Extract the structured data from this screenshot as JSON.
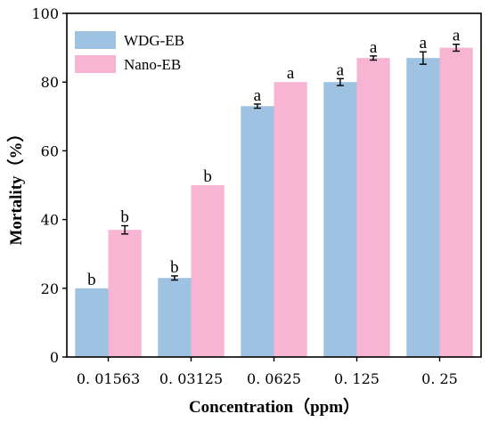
{
  "chart_data": {
    "type": "bar",
    "title": "",
    "xlabel": "Concentration（ppm）",
    "ylabel": "Mortality（%）",
    "ylim": [
      0,
      100
    ],
    "yticks": [
      0,
      20,
      40,
      60,
      80,
      100
    ],
    "grid": false,
    "legend_position": "top-left",
    "categories": [
      "0. 01563",
      "0. 03125",
      "0. 0625",
      "0. 125",
      "0. 25"
    ],
    "series": [
      {
        "name": "WDG-EB",
        "color": "#9ec2e1",
        "values": [
          20,
          23,
          73,
          80,
          87
        ],
        "errors": [
          0,
          0.6,
          0.6,
          1.0,
          1.8
        ],
        "labels": [
          "b",
          "b",
          "a",
          "a",
          "a"
        ]
      },
      {
        "name": "Nano-EB",
        "color": "#f7b4d3",
        "values": [
          37,
          50,
          80,
          87,
          90
        ],
        "errors": [
          1.2,
          0,
          0,
          0.6,
          1.0
        ],
        "labels": [
          "b",
          "b",
          "a",
          "a",
          "a"
        ]
      }
    ]
  }
}
